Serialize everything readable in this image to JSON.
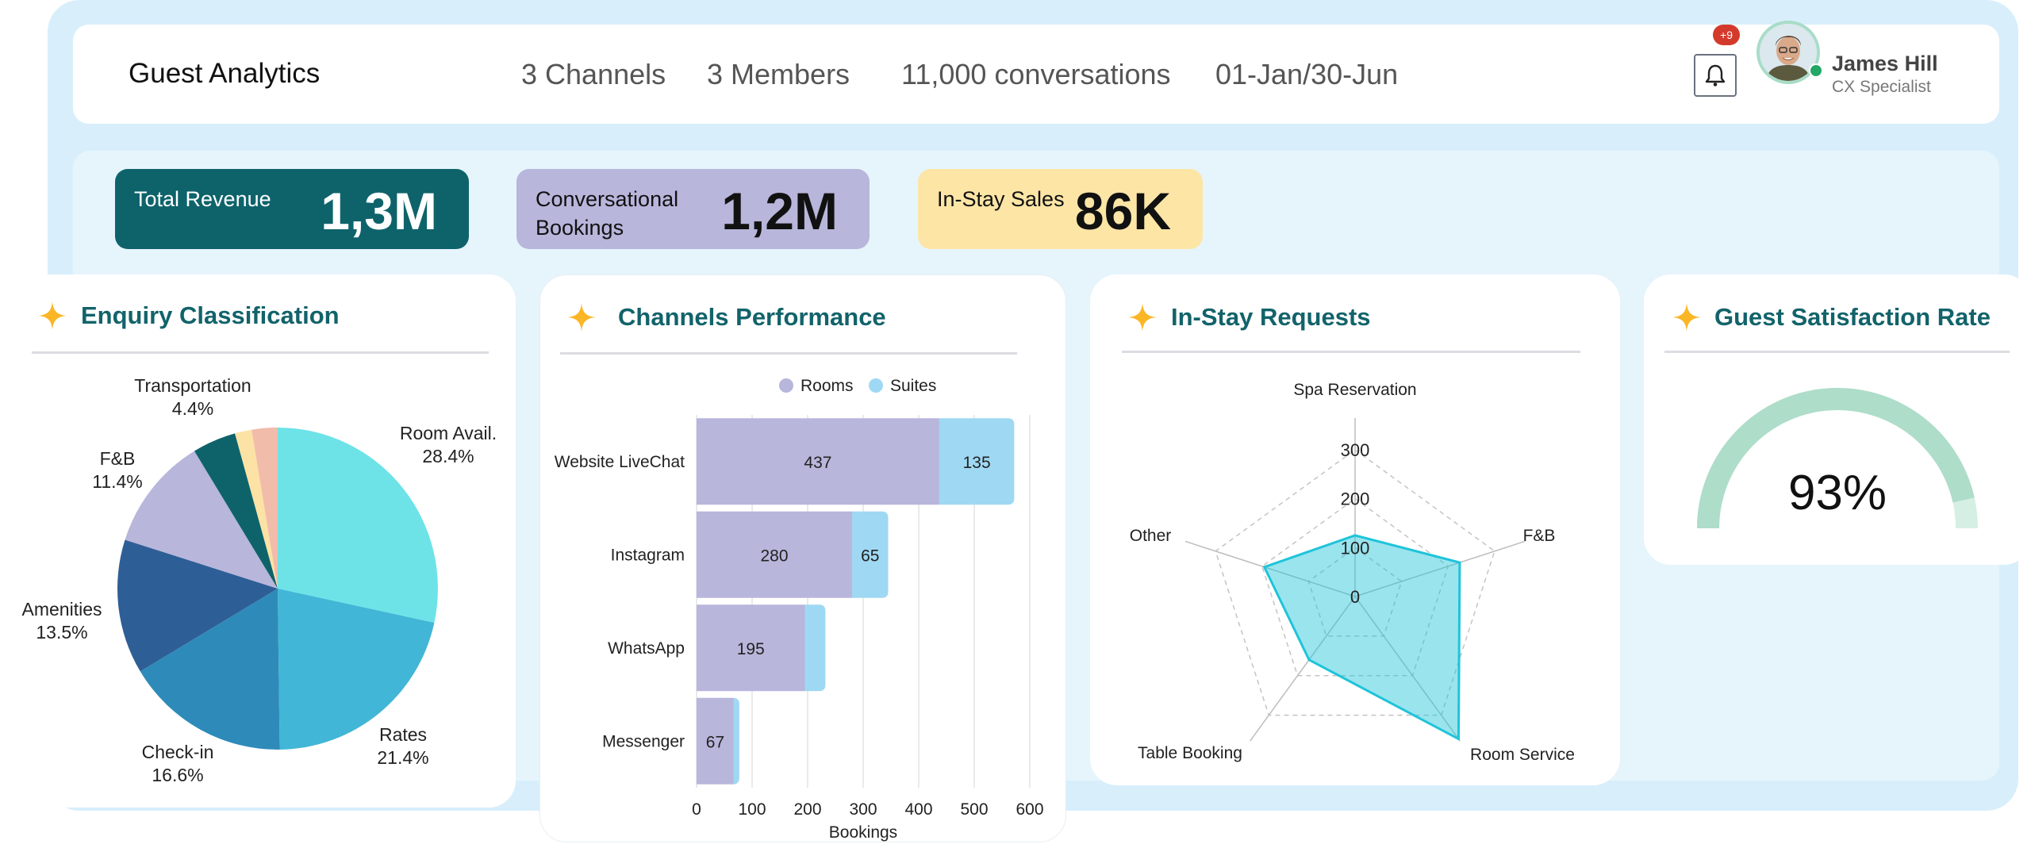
{
  "header": {
    "title": "Guest Analytics",
    "stats": [
      "3 Channels",
      "3 Members",
      "11,000 conversations",
      "01-Jan/30-Jun"
    ],
    "notifications_badge": "+9",
    "user": {
      "name": "James Hill",
      "role": "CX Specialist",
      "status": "online"
    }
  },
  "kpis": [
    {
      "label": "Total Revenue",
      "value": "1,3M",
      "bg": "#0e636b",
      "fg": "#ffffff"
    },
    {
      "label": "Conversational Bookings",
      "value": "1,2M",
      "bg": "#b8b6db",
      "fg": "#111111"
    },
    {
      "label": "In-Stay Sales",
      "value": "86K",
      "bg": "#fde5a6",
      "fg": "#111111"
    }
  ],
  "colors": {
    "title": "#12636a",
    "sparkle": "#fbb626",
    "panel": "#d8effb"
  },
  "cards": {
    "enquiry": {
      "title": "Enquiry Classification"
    },
    "channels": {
      "title": "Channels Performance"
    },
    "instay": {
      "title": "In-Stay Requests"
    },
    "satisfaction": {
      "title": "Guest Satisfaction Rate"
    }
  },
  "chart_data": [
    {
      "type": "pie",
      "title": "Enquiry Classification",
      "slices": [
        {
          "label": "Room Avail.",
          "value": 28.4,
          "display": "28.4%",
          "color": "#6de3e8"
        },
        {
          "label": "Rates",
          "value": 21.4,
          "display": "21.4%",
          "color": "#42b6d6"
        },
        {
          "label": "Check-in",
          "value": 16.6,
          "display": "16.6%",
          "color": "#2e8bb9"
        },
        {
          "label": "Amenities",
          "value": 13.5,
          "display": "13.5%",
          "color": "#2e5e96"
        },
        {
          "label": "F&B",
          "value": 11.4,
          "display": "11.4%",
          "color": "#b8b6db"
        },
        {
          "label": "Transportation",
          "value": 4.4,
          "display": "4.4%",
          "color": "#0e636b"
        },
        {
          "label": "",
          "value": 1.7,
          "display": "",
          "color": "#fce2a4"
        },
        {
          "label": "",
          "value": 2.6,
          "display": "",
          "color": "#f2bcaa"
        }
      ]
    },
    {
      "type": "bar",
      "orientation": "horizontal",
      "stacked": true,
      "title": "Channels Performance",
      "categories": [
        "Website LiveChat",
        "Instagram",
        "WhatsApp",
        "Messenger"
      ],
      "series": [
        {
          "name": "Rooms",
          "values": [
            437,
            280,
            195,
            67
          ],
          "labels": [
            "437",
            "280",
            "195",
            "67"
          ],
          "color": "#b8b6db"
        },
        {
          "name": "Suites",
          "values": [
            135,
            65,
            37,
            10
          ],
          "labels": [
            "135",
            "65",
            "",
            ""
          ],
          "color": "#9fd8f3"
        }
      ],
      "xlabel": "Bookings",
      "xlim": [
        0,
        600
      ],
      "xticks": [
        "0",
        "100",
        "200",
        "300",
        "400",
        "500",
        "600"
      ],
      "legend": "top-center",
      "grid": true
    },
    {
      "type": "radar",
      "title": "In-Stay Requests",
      "axes": [
        "Spa Reservation",
        "F&B",
        "Room Service",
        "Table Booking",
        "Other"
      ],
      "values": [
        125,
        225,
        360,
        160,
        195
      ],
      "rticks": [
        "0",
        "100",
        "200",
        "300"
      ],
      "rmax": 365,
      "color": "#1ec4d9"
    },
    {
      "type": "gauge",
      "title": "Guest Satisfaction Rate",
      "value": 93,
      "display": "93%",
      "color": "#aeddc9",
      "track_color": "#d6efe4"
    }
  ]
}
